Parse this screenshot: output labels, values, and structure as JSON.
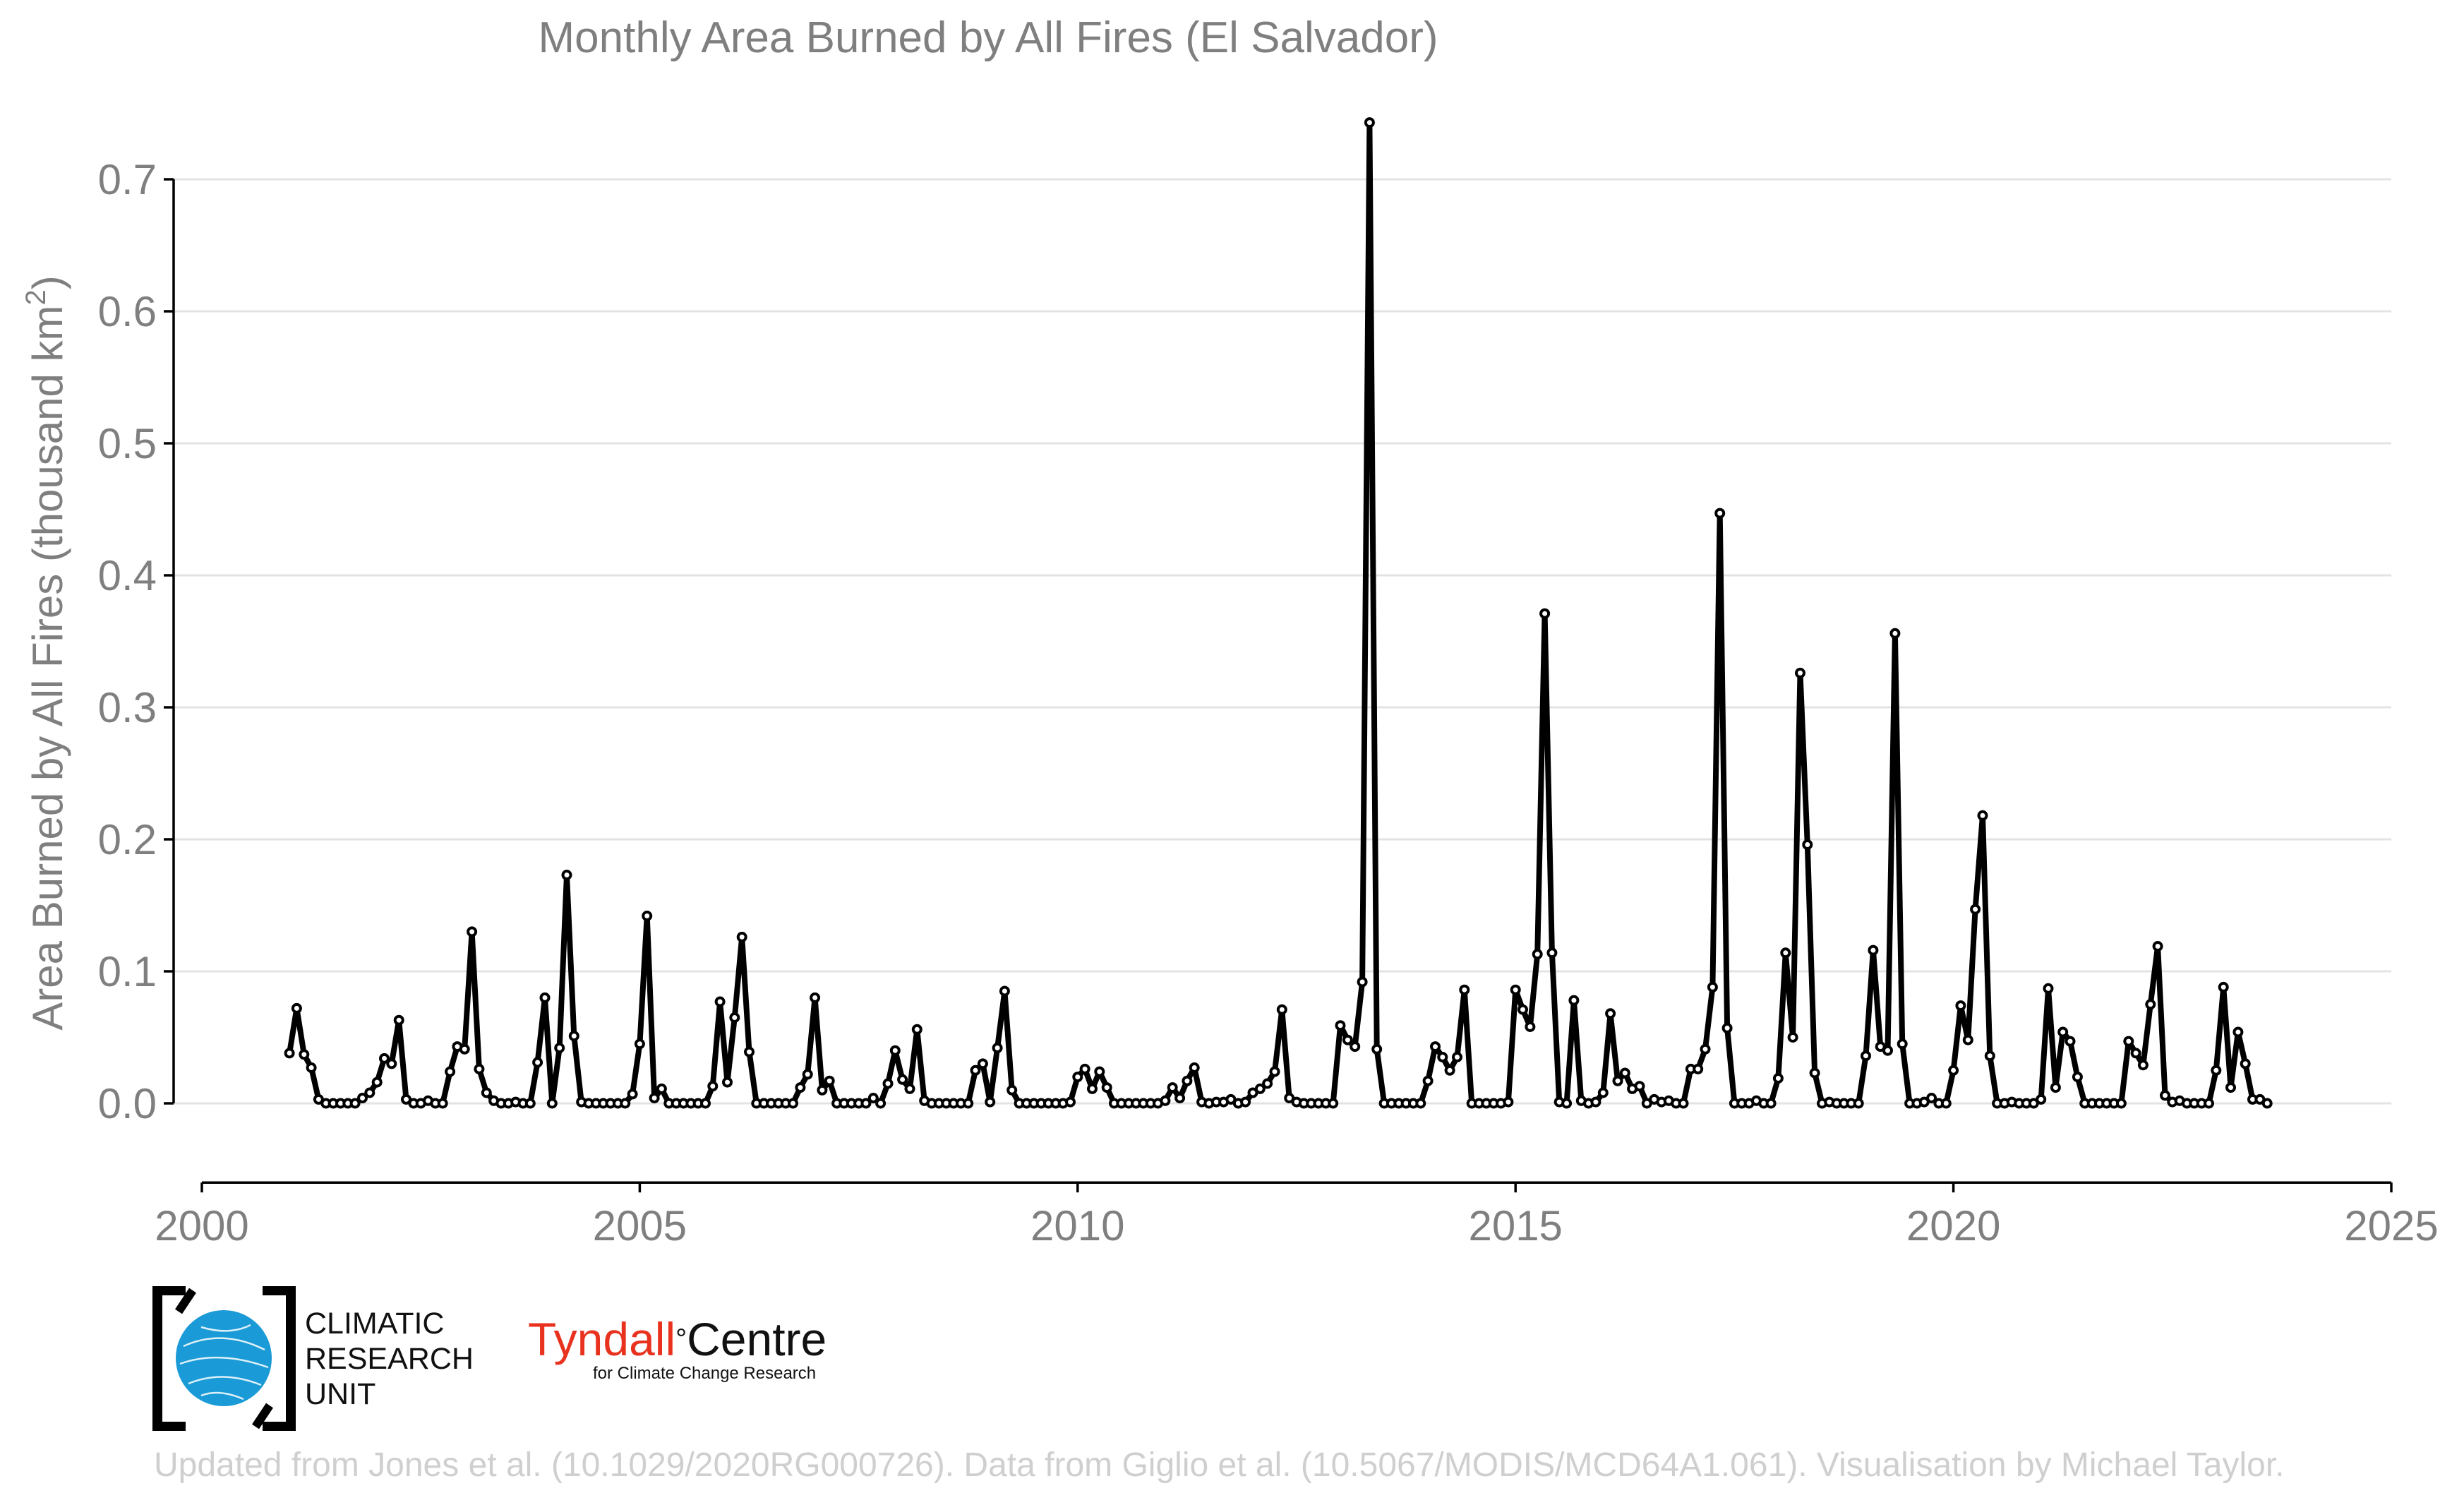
{
  "chart_data": {
    "type": "line",
    "title": "Monthly Area Burned by All Fires (El Salvador)",
    "ylabel_main": "Area Burned by All Fires (thousand km",
    "ylabel_sup": "2",
    "ylabel_close": ")",
    "xlim": [
      2000,
      2025
    ],
    "ylim": [
      -0.06,
      0.7
    ],
    "xticks": [
      2000,
      2005,
      2010,
      2015,
      2020,
      2025
    ],
    "xtick_labels": [
      "2000",
      "2005",
      "2010",
      "2015",
      "2020",
      "2025"
    ],
    "yticks": [
      0.0,
      0.1,
      0.2,
      0.3,
      0.4,
      0.5,
      0.6,
      0.7
    ],
    "ytick_labels": [
      "0.0",
      "0.1",
      "0.2",
      "0.3",
      "0.4",
      "0.5",
      "0.6",
      "0.7"
    ],
    "grid": "horizontal",
    "series": [
      {
        "start_year": 2001,
        "start_month": 1,
        "frequency": "monthly",
        "values": [
          0.038,
          0.072,
          0.037,
          0.027,
          0.003,
          0.0,
          0.0,
          0.0,
          0.0,
          0.0,
          0.004,
          0.008,
          0.016,
          0.034,
          0.03,
          0.063,
          0.003,
          0.0,
          0.0,
          0.002,
          0.0,
          0.0,
          0.024,
          0.043,
          0.041,
          0.13,
          0.026,
          0.008,
          0.002,
          0.0,
          0.0,
          0.001,
          0.0,
          0.0,
          0.031,
          0.08,
          0.0,
          0.042,
          0.173,
          0.051,
          0.001,
          0.0,
          0.0,
          0.0,
          0.0,
          0.0,
          0.0,
          0.007,
          0.045,
          0.142,
          0.004,
          0.011,
          0.0,
          0.0,
          0.0,
          0.0,
          0.0,
          0.0,
          0.013,
          0.077,
          0.016,
          0.065,
          0.126,
          0.039,
          0.0,
          0.0,
          0.0,
          0.0,
          0.0,
          0.0,
          0.012,
          0.022,
          0.08,
          0.01,
          0.017,
          0.0,
          0.0,
          0.0,
          0.0,
          0.0,
          0.004,
          0.0,
          0.015,
          0.04,
          0.018,
          0.011,
          0.056,
          0.002,
          0.0,
          0.0,
          0.0,
          0.0,
          0.0,
          0.0,
          0.025,
          0.03,
          0.001,
          0.042,
          0.085,
          0.01,
          0.0,
          0.0,
          0.0,
          0.0,
          0.0,
          0.0,
          0.0,
          0.001,
          0.02,
          0.026,
          0.011,
          0.024,
          0.012,
          0.0,
          0.0,
          0.0,
          0.0,
          0.0,
          0.0,
          0.0,
          0.002,
          0.012,
          0.004,
          0.017,
          0.027,
          0.001,
          0.0,
          0.001,
          0.001,
          0.003,
          0.0,
          0.001,
          0.008,
          0.011,
          0.015,
          0.024,
          0.071,
          0.004,
          0.001,
          0.0,
          0.0,
          0.0,
          0.0,
          0.0,
          0.059,
          0.048,
          0.043,
          0.092,
          0.743,
          0.041,
          0.0,
          0.0,
          0.0,
          0.0,
          0.0,
          0.0,
          0.017,
          0.043,
          0.035,
          0.025,
          0.035,
          0.086,
          0.0,
          0.0,
          0.0,
          0.0,
          0.0,
          0.001,
          0.086,
          0.071,
          0.058,
          0.113,
          0.371,
          0.114,
          0.001,
          0.0,
          0.078,
          0.002,
          0.0,
          0.001,
          0.008,
          0.068,
          0.017,
          0.023,
          0.011,
          0.013,
          0.0,
          0.003,
          0.001,
          0.002,
          0.0,
          0.0,
          0.026,
          0.026,
          0.041,
          0.088,
          0.447,
          0.057,
          0.0,
          0.0,
          0.0,
          0.002,
          0.0,
          0.0,
          0.019,
          0.114,
          0.05,
          0.326,
          0.196,
          0.023,
          0.0,
          0.001,
          0.0,
          0.0,
          0.0,
          0.0,
          0.036,
          0.116,
          0.043,
          0.04,
          0.356,
          0.045,
          0.0,
          0.0,
          0.001,
          0.004,
          0.0,
          0.0,
          0.025,
          0.074,
          0.048,
          0.147,
          0.218,
          0.036,
          0.0,
          0.0,
          0.001,
          0.0,
          0.0,
          0.0,
          0.003,
          0.087,
          0.012,
          0.054,
          0.047,
          0.02,
          0.0,
          0.0,
          0.0,
          0.0,
          0.0,
          0.0,
          0.047,
          0.038,
          0.029,
          0.075,
          0.119,
          0.006,
          0.001,
          0.002,
          0.0,
          0.0,
          0.0,
          0.0,
          0.025,
          0.088,
          0.012,
          0.054,
          0.03,
          0.003,
          0.003,
          0.0
        ]
      }
    ]
  },
  "logos": {
    "cru_line1": "CLIMATIC",
    "cru_line2": "RESEARCH",
    "cru_line3": "UNIT",
    "tyndall_red": "Tyndall",
    "tyndall_degree": "°",
    "tyndall_black": "Centre",
    "tyndall_sub": "for Climate Change Research"
  },
  "footer": "Updated from Jones et al. (10.1029/2020RG000726). Data from Giglio et al. (10.5067/MODIS/MCD64A1.061). Visualisation by Michael Taylor.",
  "colors": {
    "line": "#000000",
    "markers": "#ffffff",
    "text": "#7f7f7f",
    "footer": "#cfcfcf",
    "tyndall_red": "#e8321e",
    "cru_blue": "#1a9ad6"
  }
}
